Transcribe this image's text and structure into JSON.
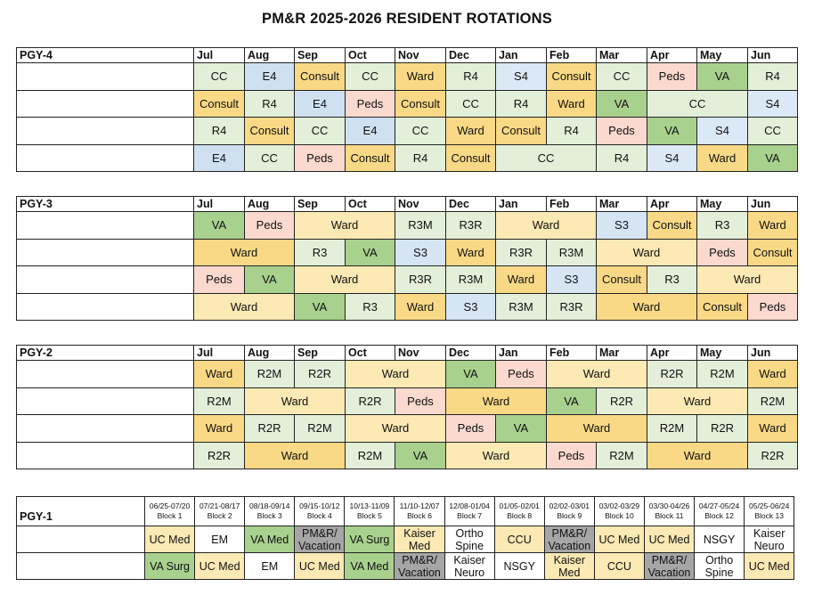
{
  "title": "PM&R 2025-2026 RESIDENT ROTATIONS",
  "months": [
    "Jul",
    "Aug",
    "Sep",
    "Oct",
    "Nov",
    "Dec",
    "Jan",
    "Feb",
    "Mar",
    "Apr",
    "May",
    "Jun"
  ],
  "pgy4": {
    "label": "PGY-4",
    "rows": [
      [
        [
          "CC",
          1,
          "CC"
        ],
        [
          "E4",
          1,
          "E4"
        ],
        [
          "Consult",
          1,
          "Consult"
        ],
        [
          "CC",
          1,
          "CC"
        ],
        [
          "Ward",
          1,
          "WardD"
        ],
        [
          "R4",
          1,
          "R4"
        ],
        [
          "S4",
          1,
          "S4"
        ],
        [
          "Consult",
          1,
          "Consult"
        ],
        [
          "CC",
          1,
          "CC"
        ],
        [
          "Peds",
          1,
          "Peds"
        ],
        [
          "VA",
          1,
          "VA"
        ],
        [
          "R4",
          1,
          "R4"
        ]
      ],
      [
        [
          "Consult",
          1,
          "Consult"
        ],
        [
          "R4",
          1,
          "R4"
        ],
        [
          "E4",
          1,
          "E4"
        ],
        [
          "Peds",
          1,
          "Peds"
        ],
        [
          "Consult",
          1,
          "Consult"
        ],
        [
          "CC",
          1,
          "CC"
        ],
        [
          "R4",
          1,
          "R4"
        ],
        [
          "Ward",
          1,
          "WardD"
        ],
        [
          "VA",
          1,
          "VA"
        ],
        [
          "CC",
          2,
          "CC"
        ],
        [
          "S4",
          1,
          "S4"
        ]
      ],
      [
        [
          "R4",
          1,
          "R4"
        ],
        [
          "Consult",
          1,
          "Consult"
        ],
        [
          "CC",
          1,
          "CC"
        ],
        [
          "E4",
          1,
          "E4"
        ],
        [
          "CC",
          1,
          "CC"
        ],
        [
          "Ward",
          1,
          "WardD"
        ],
        [
          "Consult",
          1,
          "Consult"
        ],
        [
          "R4",
          1,
          "R4"
        ],
        [
          "Peds",
          1,
          "Peds"
        ],
        [
          "VA",
          1,
          "VA"
        ],
        [
          "S4",
          1,
          "S4"
        ],
        [
          "CC",
          1,
          "CC"
        ]
      ],
      [
        [
          "E4",
          1,
          "E4"
        ],
        [
          "CC",
          1,
          "CC"
        ],
        [
          "Peds",
          1,
          "Peds"
        ],
        [
          "Consult",
          1,
          "Consult"
        ],
        [
          "R4",
          1,
          "R4"
        ],
        [
          "Consult",
          1,
          "Consult"
        ],
        [
          "CC",
          2,
          "CC"
        ],
        [
          "R4",
          1,
          "R4"
        ],
        [
          "S4",
          1,
          "S4"
        ],
        [
          "Ward",
          1,
          "WardD"
        ],
        [
          "VA",
          1,
          "VA"
        ]
      ]
    ]
  },
  "pgy3": {
    "label": "PGY-3",
    "rows": [
      [
        [
          "VA",
          1,
          "VA"
        ],
        [
          "Peds",
          1,
          "Peds"
        ],
        [
          "Ward",
          2,
          "Ward"
        ],
        [
          "R3M",
          1,
          "R3M"
        ],
        [
          "R3R",
          1,
          "R3R"
        ],
        [
          "Ward",
          2,
          "Ward"
        ],
        [
          "S3",
          1,
          "S3"
        ],
        [
          "Consult",
          1,
          "Consult"
        ],
        [
          "R3",
          1,
          "R3"
        ],
        [
          "Ward",
          1,
          "WardD"
        ]
      ],
      [
        [
          "Ward",
          2,
          "WardD"
        ],
        [
          "R3",
          1,
          "R3"
        ],
        [
          "VA",
          1,
          "VA"
        ],
        [
          "S3",
          1,
          "S3"
        ],
        [
          "Ward",
          1,
          "WardD"
        ],
        [
          "R3R",
          1,
          "R3R"
        ],
        [
          "R3M",
          1,
          "R3M"
        ],
        [
          "Ward",
          2,
          "Ward"
        ],
        [
          "Peds",
          1,
          "Peds"
        ],
        [
          "Consult",
          1,
          "Consult"
        ]
      ],
      [
        [
          "Peds",
          1,
          "Peds"
        ],
        [
          "VA",
          1,
          "VA"
        ],
        [
          "Ward",
          2,
          "Ward"
        ],
        [
          "R3R",
          1,
          "R3R"
        ],
        [
          "R3M",
          1,
          "R3M"
        ],
        [
          "Ward",
          1,
          "WardD"
        ],
        [
          "S3",
          1,
          "S3"
        ],
        [
          "Consult",
          1,
          "Consult"
        ],
        [
          "R3",
          1,
          "R3"
        ],
        [
          "Ward",
          2,
          "Ward"
        ]
      ],
      [
        [
          "Ward",
          2,
          "Ward"
        ],
        [
          "VA",
          1,
          "VA"
        ],
        [
          "R3",
          1,
          "R3"
        ],
        [
          "Ward",
          1,
          "WardD"
        ],
        [
          "S3",
          1,
          "S3"
        ],
        [
          "R3M",
          1,
          "R3M"
        ],
        [
          "R3R",
          1,
          "R3R"
        ],
        [
          "Ward",
          2,
          "WardD"
        ],
        [
          "Consult",
          1,
          "Consult"
        ],
        [
          "Peds",
          1,
          "Peds"
        ]
      ]
    ]
  },
  "pgy2": {
    "label": "PGY-2",
    "rows": [
      [
        [
          "Ward",
          1,
          "WardD"
        ],
        [
          "R2M",
          1,
          "R2M"
        ],
        [
          "R2R",
          1,
          "R2R"
        ],
        [
          "Ward",
          2,
          "Ward"
        ],
        [
          "VA",
          1,
          "VA"
        ],
        [
          "Peds",
          1,
          "Peds"
        ],
        [
          "Ward",
          2,
          "Ward"
        ],
        [
          "R2R",
          1,
          "R2R"
        ],
        [
          "R2M",
          1,
          "R2M"
        ],
        [
          "Ward",
          1,
          "WardD"
        ]
      ],
      [
        [
          "R2M",
          1,
          "R2M"
        ],
        [
          "Ward",
          2,
          "Ward"
        ],
        [
          "R2R",
          1,
          "R2R"
        ],
        [
          "Peds",
          1,
          "Peds"
        ],
        [
          "Ward",
          2,
          "WardD"
        ],
        [
          "VA",
          1,
          "VA"
        ],
        [
          "R2R",
          1,
          "R2R"
        ],
        [
          "Ward",
          2,
          "Ward"
        ],
        [
          "R2M",
          1,
          "R2M"
        ]
      ],
      [
        [
          "Ward",
          1,
          "WardD"
        ],
        [
          "R2R",
          1,
          "R2R"
        ],
        [
          "R2M",
          1,
          "R2M"
        ],
        [
          "Ward",
          2,
          "Ward"
        ],
        [
          "Peds",
          1,
          "Peds"
        ],
        [
          "VA",
          1,
          "VA"
        ],
        [
          "Ward",
          2,
          "WardD"
        ],
        [
          "R2M",
          1,
          "R2M"
        ],
        [
          "R2R",
          1,
          "R2R"
        ],
        [
          "Ward",
          1,
          "WardD"
        ]
      ],
      [
        [
          "R2R",
          1,
          "R2R"
        ],
        [
          "Ward",
          2,
          "WardD"
        ],
        [
          "R2M",
          1,
          "R2M"
        ],
        [
          "VA",
          1,
          "VA"
        ],
        [
          "Ward",
          2,
          "Ward"
        ],
        [
          "Peds",
          1,
          "Peds"
        ],
        [
          "R2M",
          1,
          "R2M"
        ],
        [
          "Ward",
          2,
          "WardD"
        ],
        [
          "R2R",
          1,
          "R2R"
        ]
      ]
    ]
  },
  "pgy1": {
    "label": "PGY-1",
    "blocks": [
      [
        "06/25-07/20",
        "Block 1"
      ],
      [
        "07/21-08/17",
        "Block 2"
      ],
      [
        "08/18-09/14",
        "Block 3"
      ],
      [
        "09/15-10/12",
        "Block 4"
      ],
      [
        "10/13-11/09",
        "Block 5"
      ],
      [
        "11/10-12/07",
        "Block 6"
      ],
      [
        "12/08-01/04",
        "Block 7"
      ],
      [
        "01/05-02/01",
        "Block 8"
      ],
      [
        "02/02-03/01",
        "Block 9"
      ],
      [
        "03/02-03/29",
        "Block 10"
      ],
      [
        "03/30-04/26",
        "Block 11"
      ],
      [
        "04/27-05/24",
        "Block 12"
      ],
      [
        "05/25-06/24",
        "Block 13"
      ]
    ],
    "rows": [
      [
        [
          "UC Med",
          "UCMed"
        ],
        [
          "EM",
          "White"
        ],
        [
          "VA Med",
          "VAg"
        ],
        [
          "PM&R/ Vacation",
          "Gray"
        ],
        [
          "VA Surg",
          "VAg"
        ],
        [
          "Kaiser Med",
          "UCMed"
        ],
        [
          "Ortho Spine",
          "White"
        ],
        [
          "CCU",
          "UCMed"
        ],
        [
          "PM&R/ Vacation",
          "Gray"
        ],
        [
          "UC Med",
          "UCMed"
        ],
        [
          "UC Med",
          "UCMed"
        ],
        [
          "NSGY",
          "White"
        ],
        [
          "Kaiser Neuro",
          "White"
        ]
      ],
      [
        [
          "VA Surg",
          "VAg"
        ],
        [
          "UC Med",
          "UCMed"
        ],
        [
          "EM",
          "White"
        ],
        [
          "UC Med",
          "UCMed"
        ],
        [
          "VA Med",
          "VAg"
        ],
        [
          "PM&R/ Vacation",
          "Gray"
        ],
        [
          "Kaiser Neuro",
          "White"
        ],
        [
          "NSGY",
          "White"
        ],
        [
          "Kaiser Med",
          "UCMed"
        ],
        [
          "CCU",
          "UCMed"
        ],
        [
          "PM&R/ Vacation",
          "Gray"
        ],
        [
          "Ortho Spine",
          "White"
        ],
        [
          "UC Med",
          "UCMed"
        ]
      ]
    ]
  }
}
